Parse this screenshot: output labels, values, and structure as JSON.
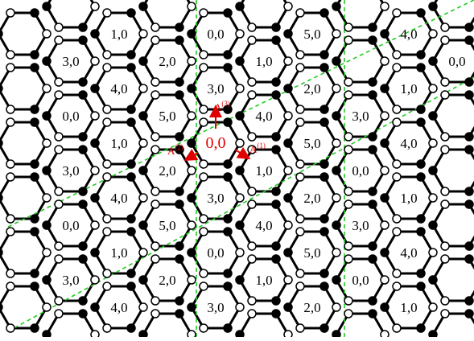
{
  "colors": {
    "background": "#ffffff",
    "bond": "#000000",
    "site_filled": "#000000",
    "site_open": "#ffffff",
    "boundary": "#22cc22",
    "highlight": "#e00000"
  },
  "hexagon_labels": [
    [
      {
        "text": "1,0"
      },
      {
        "text": "0,0"
      },
      {
        "text": "5,0"
      },
      {
        "text": "4,0"
      }
    ],
    [
      {
        "text": "3,0"
      },
      {
        "text": "2,0"
      },
      {
        "text": "1,0"
      },
      {
        "text": ""
      },
      {
        "text": "0,0"
      }
    ],
    [
      {
        "text": "4,0"
      },
      {
        "text": "3,0"
      },
      {
        "text": "2,0"
      },
      {
        "text": "1,0"
      }
    ],
    [
      {
        "text": "0,0"
      },
      {
        "text": "5,0"
      },
      {
        "text": "4,0"
      },
      {
        "text": "3,0"
      }
    ],
    [
      {
        "text": "1,0"
      },
      {
        "text": ""
      },
      {
        "text": "5,0"
      },
      {
        "text": "4,0"
      }
    ],
    [
      {
        "text": "3,0"
      },
      {
        "text": "2,0"
      },
      {
        "text": "1,0"
      },
      {
        "text": "0,0"
      }
    ],
    [
      {
        "text": "4,0"
      },
      {
        "text": "3,0"
      },
      {
        "text": "2,0"
      },
      {
        "text": "1,0"
      }
    ],
    [
      {
        "text": "0,0"
      },
      {
        "text": "5,0"
      },
      {
        "text": "4,0"
      },
      {
        "text": "3,0"
      }
    ],
    [
      {
        "text": "1,0"
      },
      {
        "text": "0,0"
      },
      {
        "text": "5,0"
      },
      {
        "text": "4,0"
      }
    ],
    [
      {
        "text": "3,0"
      },
      {
        "text": "2,0"
      },
      {
        "text": "1,0"
      },
      {
        "text": "0,0"
      }
    ],
    [
      {
        "text": "4,0"
      },
      {
        "text": "3,0"
      },
      {
        "text": "2,0"
      },
      {
        "text": "1,0"
      }
    ]
  ],
  "center_label": "0,0",
  "vectors": [
    {
      "base": "A",
      "sup": "(1)"
    },
    {
      "base": "A",
      "sup": "(2)"
    },
    {
      "base": "A",
      "sup": "(3)"
    }
  ]
}
